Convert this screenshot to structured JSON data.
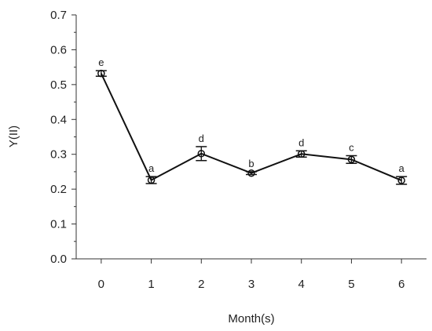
{
  "chart_data": {
    "type": "line",
    "xlabel": "Month(s)",
    "ylabel": "Y(II)",
    "xlim": [
      -0.5,
      6.5
    ],
    "ylim": [
      0.0,
      0.7
    ],
    "x_ticks": [
      "0",
      "1",
      "2",
      "3",
      "4",
      "5",
      "6"
    ],
    "y_ticks": [
      "0.0",
      "0.1",
      "0.2",
      "0.3",
      "0.4",
      "0.5",
      "0.6",
      "0.7"
    ],
    "grid": false,
    "series": [
      {
        "x": [
          0,
          1,
          2,
          3,
          4,
          5,
          6
        ],
        "y": [
          0.532,
          0.226,
          0.302,
          0.246,
          0.301,
          0.285,
          0.225
        ],
        "error": [
          0.008,
          0.01,
          0.02,
          0.004,
          0.009,
          0.011,
          0.011
        ],
        "labels": [
          "e",
          "a",
          "d",
          "b",
          "d",
          "c",
          "a"
        ],
        "color": "#111111",
        "marker": "open-circle"
      }
    ]
  }
}
